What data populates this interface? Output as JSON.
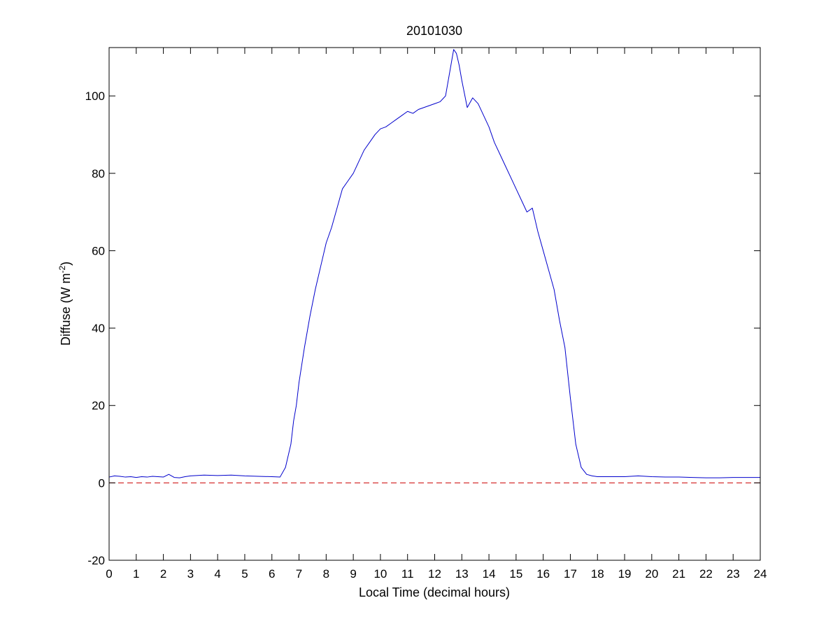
{
  "chart_data": {
    "type": "line",
    "title": "20101030",
    "xlabel": "Local Time (decimal hours)",
    "ylabel": "Diffuse (W m^-2)",
    "ylabel_parts": {
      "main": "Diffuse (W m",
      "sup": "-2",
      "close": ")"
    },
    "xlim": [
      0,
      24
    ],
    "ylim": [
      -20,
      112.5
    ],
    "x_ticks": [
      0,
      1,
      2,
      3,
      4,
      5,
      6,
      7,
      8,
      9,
      10,
      11,
      12,
      13,
      14,
      15,
      16,
      17,
      18,
      19,
      20,
      21,
      22,
      23,
      24
    ],
    "y_ticks": [
      -20,
      0,
      20,
      40,
      60,
      80,
      100
    ],
    "grid": false,
    "series": [
      {
        "color": "#0000cc",
        "x": [
          0,
          0.2,
          0.4,
          0.6,
          0.8,
          1.0,
          1.2,
          1.4,
          1.6,
          1.8,
          2.0,
          2.2,
          2.4,
          2.6,
          2.8,
          3.0,
          3.5,
          4.0,
          4.5,
          5.0,
          5.5,
          6.0,
          6.3,
          6.5,
          6.7,
          6.8,
          6.9,
          7.0,
          7.2,
          7.4,
          7.6,
          7.8,
          8.0,
          8.2,
          8.4,
          8.6,
          8.8,
          9.0,
          9.2,
          9.4,
          9.6,
          9.8,
          10.0,
          10.2,
          10.4,
          10.6,
          10.8,
          11.0,
          11.2,
          11.4,
          11.6,
          11.8,
          12.0,
          12.2,
          12.4,
          12.6,
          12.7,
          12.8,
          12.9,
          13.0,
          13.2,
          13.4,
          13.6,
          13.8,
          14.0,
          14.2,
          14.4,
          14.6,
          14.8,
          15.0,
          15.2,
          15.4,
          15.6,
          15.8,
          16.0,
          16.2,
          16.4,
          16.6,
          16.8,
          17.0,
          17.2,
          17.4,
          17.6,
          17.8,
          18.0,
          18.5,
          19.0,
          19.5,
          20.0,
          20.5,
          21.0,
          21.5,
          22.0,
          22.5,
          23.0,
          23.5,
          24.0
        ],
        "y": [
          1.5,
          1.8,
          1.7,
          1.5,
          1.6,
          1.4,
          1.6,
          1.5,
          1.7,
          1.6,
          1.5,
          2.2,
          1.4,
          1.3,
          1.6,
          1.8,
          2.0,
          1.9,
          2.0,
          1.8,
          1.7,
          1.6,
          1.5,
          4.0,
          10.0,
          16.0,
          20.0,
          26.0,
          35.0,
          43.0,
          50.0,
          56.0,
          62.0,
          66.0,
          71.0,
          76.0,
          78.0,
          80.0,
          83.0,
          86.0,
          88.0,
          90.0,
          91.5,
          92.0,
          93.0,
          94.0,
          95.0,
          96.0,
          95.5,
          96.5,
          97.0,
          97.5,
          98.0,
          98.5,
          100.0,
          108.0,
          112.0,
          111.0,
          108.0,
          104.0,
          97.0,
          99.5,
          98.0,
          95.0,
          92.0,
          88.0,
          85.0,
          82.0,
          79.0,
          76.0,
          73.0,
          70.0,
          71.0,
          65.0,
          60.0,
          55.0,
          50.0,
          42.0,
          35.0,
          22.0,
          10.0,
          4.0,
          2.2,
          1.8,
          1.6,
          1.6,
          1.6,
          1.8,
          1.6,
          1.5,
          1.5,
          1.4,
          1.3,
          1.3,
          1.4,
          1.4,
          1.4
        ]
      },
      {
        "color": "#cc0000",
        "dash": true,
        "x": [
          0,
          24
        ],
        "y": [
          0,
          0
        ]
      }
    ]
  }
}
